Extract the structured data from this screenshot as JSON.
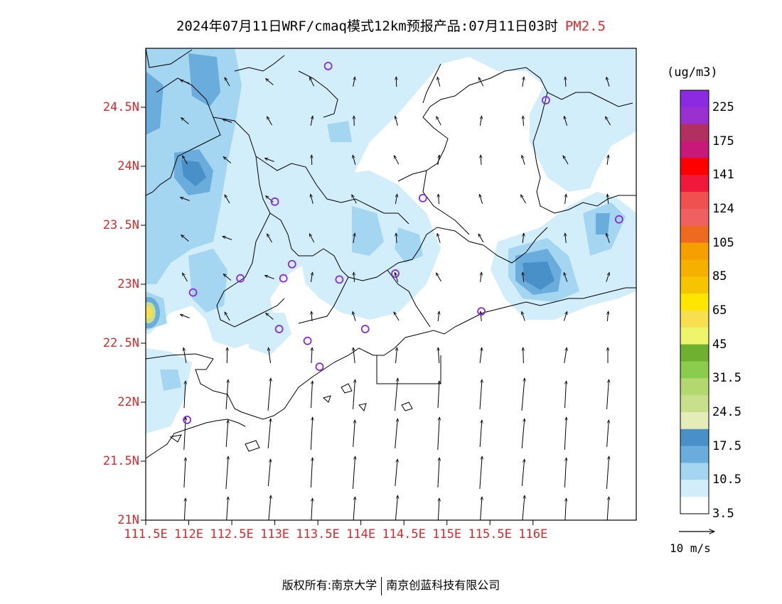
{
  "title": {
    "main": "2024年07月11日WRF/cmaq模式12km预报产品:07月11日03时",
    "variable": "PM2.5"
  },
  "axes": {
    "y_ticks": [
      "24.5N",
      "24N",
      "23.5N",
      "23N",
      "22.5N",
      "22N",
      "21.5N",
      "21N"
    ],
    "x_ticks": [
      "111.5E",
      "112E",
      "112.5E",
      "113E",
      "113.5E",
      "114E",
      "114.5E",
      "115E",
      "115.5E",
      "116E"
    ],
    "lon_range": [
      111.5,
      117.2
    ],
    "lat_range": [
      21.0,
      25.0
    ]
  },
  "colorbar": {
    "units": "(ug/m3)",
    "labels": [
      "225",
      "175",
      "141",
      "124",
      "105",
      "85",
      "65",
      "45",
      "31.5",
      "24.5",
      "17.5",
      "10.5",
      "3.5"
    ],
    "colors_top_to_bottom": [
      "#8a2be2",
      "#9b30d0",
      "#b03060",
      "#c8187a",
      "#ff0000",
      "#f0193c",
      "#f05050",
      "#f06060",
      "#ee6a20",
      "#f5a000",
      "#f6b000",
      "#f7c400",
      "#ffe600",
      "#f7df50",
      "#eef56a",
      "#6fb030",
      "#8ccc4c",
      "#b4d870",
      "#c8e08c",
      "#e4ecb8",
      "#4a90c8",
      "#6aacdc",
      "#a4d6f2",
      "#d2eefa",
      "#ffffff"
    ]
  },
  "vector_legend": {
    "label": "10 m/s"
  },
  "stations": [
    {
      "lon": 113.62,
      "lat": 24.85
    },
    {
      "lon": 116.15,
      "lat": 24.56
    },
    {
      "lon": 113.0,
      "lat": 23.7
    },
    {
      "lon": 114.72,
      "lat": 23.73
    },
    {
      "lon": 117.0,
      "lat": 23.55
    },
    {
      "lon": 112.6,
      "lat": 23.05
    },
    {
      "lon": 113.2,
      "lat": 23.17
    },
    {
      "lon": 113.1,
      "lat": 23.05
    },
    {
      "lon": 113.75,
      "lat": 23.04
    },
    {
      "lon": 114.4,
      "lat": 23.09
    },
    {
      "lon": 112.05,
      "lat": 22.93
    },
    {
      "lon": 115.4,
      "lat": 22.77
    },
    {
      "lon": 113.05,
      "lat": 22.62
    },
    {
      "lon": 113.38,
      "lat": 22.52
    },
    {
      "lon": 114.05,
      "lat": 22.62
    },
    {
      "lon": 113.52,
      "lat": 22.3
    },
    {
      "lon": 111.98,
      "lat": 21.85
    }
  ],
  "footer": {
    "left": "版权所有:南京大学",
    "right": "南京创蓝科技有限公司"
  }
}
